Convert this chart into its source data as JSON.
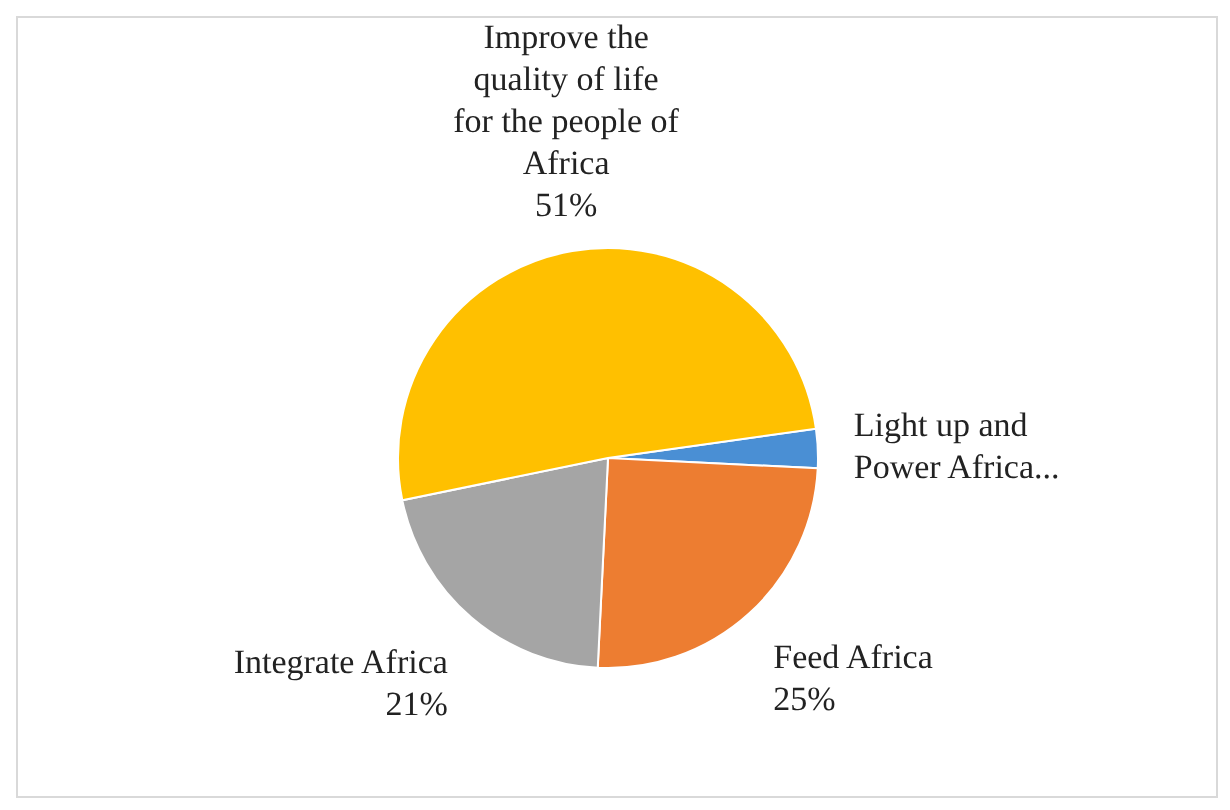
{
  "chart_data": {
    "type": "pie",
    "categories": [
      "Light up and Power Africa...",
      "Feed Africa",
      "Integrate Africa",
      "Improve the quality of life for the people of Africa"
    ],
    "values": [
      3,
      25,
      21,
      51
    ],
    "colors": [
      "#4a8fd4",
      "#ed7d31",
      "#a5a5a5",
      "#ffc000"
    ],
    "value_labels": [
      null,
      "25%",
      "21%",
      "51%"
    ]
  }
}
